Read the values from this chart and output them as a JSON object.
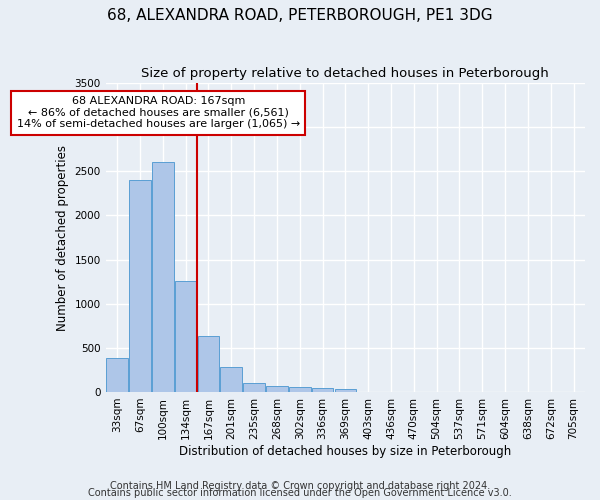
{
  "title": "68, ALEXANDRA ROAD, PETERBOROUGH, PE1 3DG",
  "subtitle": "Size of property relative to detached houses in Peterborough",
  "xlabel": "Distribution of detached houses by size in Peterborough",
  "ylabel": "Number of detached properties",
  "footnote1": "Contains HM Land Registry data © Crown copyright and database right 2024.",
  "footnote2": "Contains public sector information licensed under the Open Government Licence v3.0.",
  "bar_labels": [
    "33sqm",
    "67sqm",
    "100sqm",
    "134sqm",
    "167sqm",
    "201sqm",
    "235sqm",
    "268sqm",
    "302sqm",
    "336sqm",
    "369sqm",
    "403sqm",
    "436sqm",
    "470sqm",
    "504sqm",
    "537sqm",
    "571sqm",
    "604sqm",
    "638sqm",
    "672sqm",
    "705sqm"
  ],
  "bar_values": [
    390,
    2400,
    2600,
    1260,
    630,
    280,
    100,
    65,
    55,
    50,
    35,
    0,
    0,
    0,
    0,
    0,
    0,
    0,
    0,
    0,
    0
  ],
  "bar_color": "#aec6e8",
  "bar_edge_color": "#5a9fd4",
  "vline_index": 4,
  "vline_color": "#cc0000",
  "annotation_text": "68 ALEXANDRA ROAD: 167sqm\n← 86% of detached houses are smaller (6,561)\n14% of semi-detached houses are larger (1,065) →",
  "annotation_box_color": "#ffffff",
  "annotation_box_edge_color": "#cc0000",
  "ylim": [
    0,
    3500
  ],
  "background_color": "#e8eef5",
  "plot_bg_color": "#e8eef5",
  "grid_color": "#ffffff",
  "title_fontsize": 11,
  "subtitle_fontsize": 9.5,
  "tick_fontsize": 7.5,
  "label_fontsize": 8.5,
  "footnote_fontsize": 7
}
